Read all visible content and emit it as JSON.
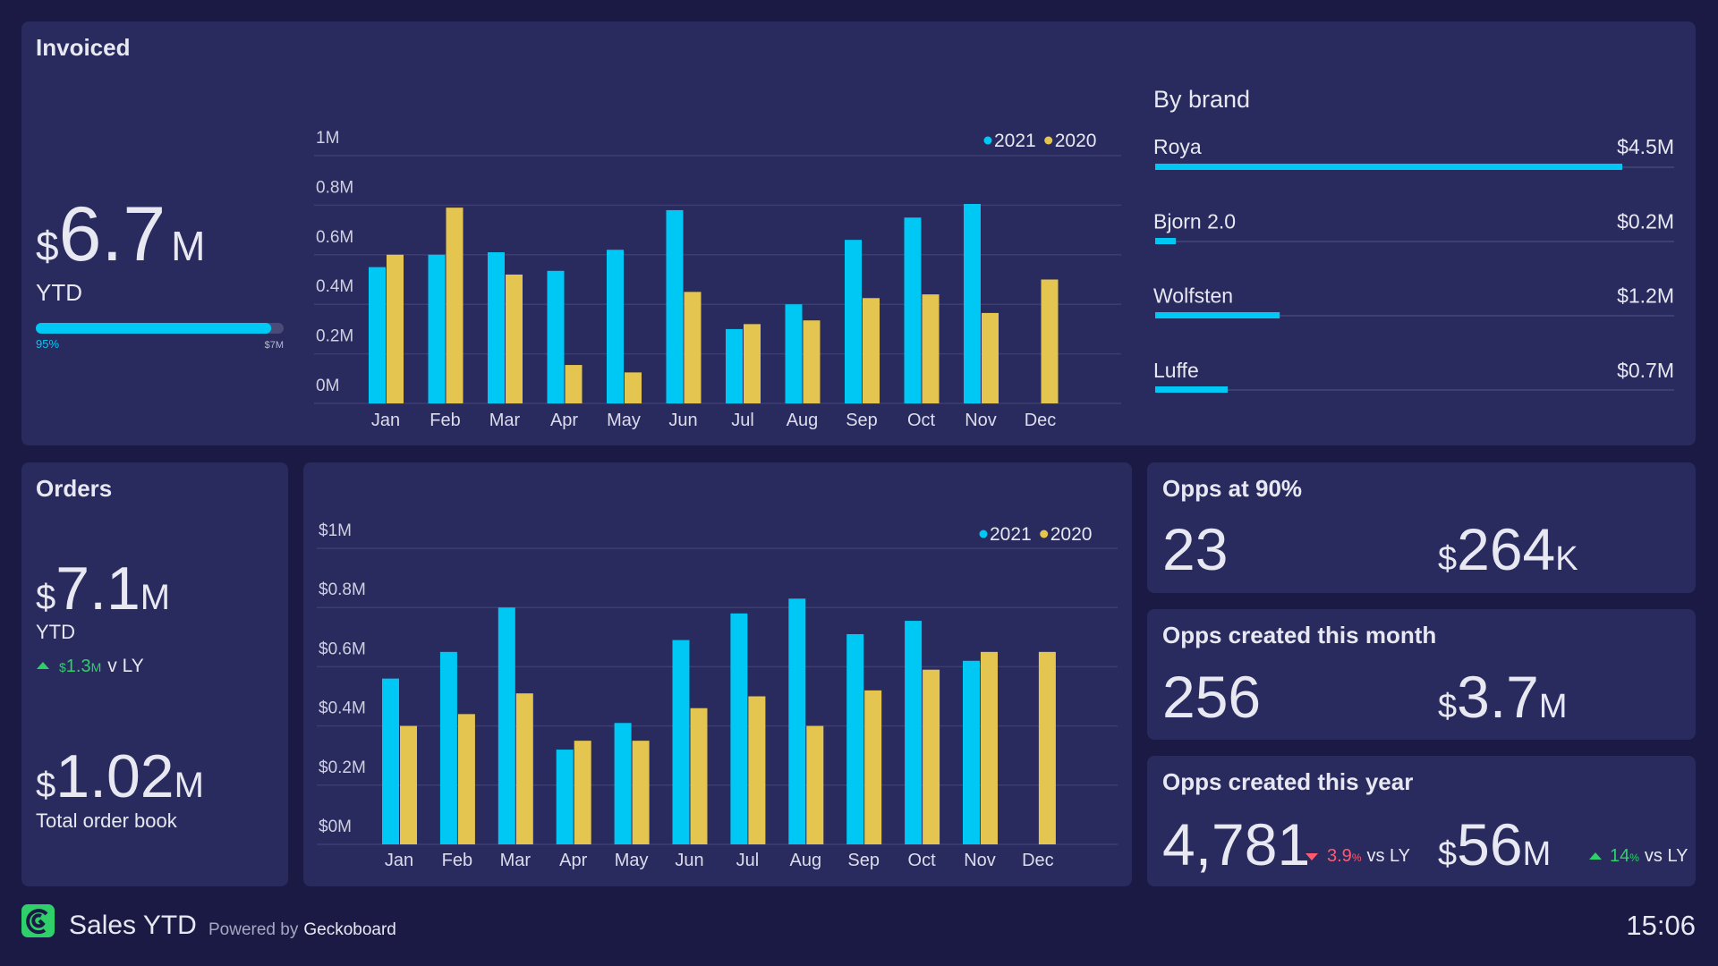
{
  "invoiced": {
    "title": "Invoiced",
    "kpi": {
      "currency": "$",
      "amount": "6.7",
      "unit": "M",
      "caption": "YTD"
    },
    "progress": {
      "value": 95,
      "label": "95%",
      "target": "$7M"
    }
  },
  "by_brand": {
    "title": "By brand",
    "xlim": [
      0,
      5
    ],
    "brands": [
      {
        "name": "Roya",
        "value": 4.5,
        "label": "$4.5M"
      },
      {
        "name": "Bjorn 2.0",
        "value": 0.2,
        "label": "$0.2M"
      },
      {
        "name": "Wolfsten",
        "value": 1.2,
        "label": "$1.2M"
      },
      {
        "name": "Luffe",
        "value": 0.7,
        "label": "$0.7M"
      }
    ]
  },
  "orders": {
    "title": "Orders",
    "ytd": {
      "currency": "$",
      "amount": "7.1",
      "unit": "M",
      "caption": "YTD"
    },
    "change": {
      "currency": "$",
      "amount": "1.3",
      "unit": "M",
      "text": "v LY"
    },
    "order_book": {
      "currency": "$",
      "amount": "1.02",
      "unit": "M",
      "caption": "Total order book"
    }
  },
  "chart_data": [
    {
      "type": "bar",
      "categories": [
        "Jan",
        "Feb",
        "Mar",
        "Apr",
        "May",
        "Jun",
        "Jul",
        "Aug",
        "Sep",
        "Oct",
        "Nov",
        "Dec"
      ],
      "series": [
        {
          "name": "2021",
          "color": "#00c8f5",
          "values": [
            0.55,
            0.6,
            0.61,
            0.535,
            0.62,
            0.78,
            0.3,
            0.4,
            0.66,
            0.75,
            0.805,
            null
          ]
        },
        {
          "name": "2020",
          "color": "#e4c550",
          "values": [
            0.6,
            0.79,
            0.52,
            0.155,
            0.125,
            0.45,
            0.32,
            0.335,
            0.425,
            0.44,
            0.365,
            0.5
          ]
        }
      ],
      "ylim": [
        0,
        1
      ],
      "yticks": [
        {
          "value": 0,
          "label": "0M"
        },
        {
          "value": 0.2,
          "label": "0.2M"
        },
        {
          "value": 0.4,
          "label": "0.4M"
        },
        {
          "value": 0.6,
          "label": "0.6M"
        },
        {
          "value": 0.8,
          "label": "0.8M"
        },
        {
          "value": 1,
          "label": "1M"
        }
      ],
      "grid": true
    },
    {
      "type": "bar",
      "categories": [
        "Jan",
        "Feb",
        "Mar",
        "Apr",
        "May",
        "Jun",
        "Jul",
        "Aug",
        "Sep",
        "Oct",
        "Nov",
        "Dec"
      ],
      "series": [
        {
          "name": "2021",
          "color": "#00c8f5",
          "values": [
            0.56,
            0.65,
            0.8,
            0.32,
            0.41,
            0.69,
            0.78,
            0.83,
            0.71,
            0.755,
            0.62,
            null
          ]
        },
        {
          "name": "2020",
          "color": "#e4c550",
          "values": [
            0.4,
            0.44,
            0.51,
            0.35,
            0.35,
            0.46,
            0.5,
            0.4,
            0.52,
            0.59,
            0.65,
            0.65
          ]
        }
      ],
      "ylim": [
        0,
        1
      ],
      "yticks": [
        {
          "value": 0,
          "label": "$0M"
        },
        {
          "value": 0.2,
          "label": "$0.2M"
        },
        {
          "value": 0.4,
          "label": "$0.4M"
        },
        {
          "value": 0.6,
          "label": "$0.6M"
        },
        {
          "value": 0.8,
          "label": "$0.8M"
        },
        {
          "value": 1,
          "label": "$1M"
        }
      ],
      "grid": true
    }
  ],
  "opps": [
    {
      "title": "Opps at 90%",
      "count": "23",
      "value": {
        "currency": "$",
        "amount": "264",
        "unit": "K"
      }
    },
    {
      "title": "Opps created this month",
      "count": "256",
      "value": {
        "currency": "$",
        "amount": "3.7",
        "unit": "M"
      }
    },
    {
      "title": "Opps created this year",
      "count": "4,781",
      "count_change": {
        "amount": "3.9",
        "unit": "%",
        "text": "vs LY"
      },
      "value": {
        "currency": "$",
        "amount": "56",
        "unit": "M"
      },
      "value_change": {
        "amount": "14",
        "unit": "%",
        "text": "vs LY"
      }
    }
  ],
  "footer": {
    "title": "Sales YTD",
    "powered_by": "Powered by",
    "brand": "Geckoboard",
    "time": "15:06"
  }
}
